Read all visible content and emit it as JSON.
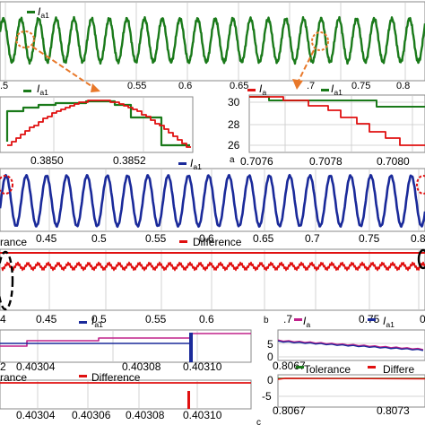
{
  "colors": {
    "green": "#1a7a1a",
    "blue": "#1a2a9a",
    "red": "#e01010",
    "orange": "#e8782a",
    "magenta": "#c0208a",
    "black": "#000000",
    "grid": "#c8c8c8"
  },
  "chart_data": [
    {
      "id": "top-green",
      "type": "line",
      "legend": {
        "symbol": "I",
        "subscript": "a1",
        "placement": "top-left"
      },
      "x_ticks": [
        "0.5",
        "0.55",
        "0.6",
        "0.65",
        "0.7",
        "0.75",
        "0.8"
      ],
      "x_tick_partial_left": ".5",
      "xlim": [
        0.34,
        0.815
      ],
      "series": [
        {
          "name": "Ia1",
          "frequency_hz": 50,
          "cycles_shown": 24
        }
      ],
      "annotations": [
        "zoom-circle-1",
        "zoom-circle-2"
      ]
    },
    {
      "id": "zoom-left",
      "type": "line",
      "legend": {
        "symbol": "I",
        "subscript": "a1"
      },
      "x_ticks": [
        "0.3850",
        "0.3852"
      ],
      "xlim": [
        0.38475,
        0.38535
      ],
      "series": [
        {
          "name": "Ia1 (stair)",
          "steps": 11
        },
        {
          "name": "Ia (fine)",
          "steps": 22
        }
      ]
    },
    {
      "id": "zoom-right",
      "type": "line",
      "legend_items": [
        {
          "symbol": "I",
          "subscript": "a"
        },
        {
          "symbol": "I",
          "subscript": "a1"
        }
      ],
      "x_ticks": [
        "0.7076",
        "0.7078",
        "0.7080"
      ],
      "y_ticks": [
        "30",
        "28",
        "26"
      ],
      "ylim": [
        25.5,
        31
      ],
      "panel_letter": "a"
    },
    {
      "id": "mid-blue",
      "type": "line",
      "legend": {
        "symbol": "I",
        "subscript": "a1"
      },
      "x_ticks": [
        "0.45",
        "0.5",
        "0.55",
        "0.6",
        "0.65",
        "0.7",
        "0.75",
        "0.8"
      ],
      "xlim": [
        0.4,
        0.815
      ],
      "series": [
        {
          "name": "Ia1",
          "frequency_hz": 50,
          "cycles_shown": 21
        }
      ]
    },
    {
      "id": "mid-red",
      "type": "line",
      "legend_items": [
        {
          "label": "rance"
        },
        {
          "label": "Difference"
        }
      ],
      "x_ticks": [
        "0.45",
        "0.5",
        "0.55",
        "0.6",
        "0.65",
        "0.7",
        "0.75",
        "0.8"
      ],
      "x_tick_partial_left": "4",
      "x_tick_partial_right": "0",
      "xlim": [
        0.4,
        0.815
      ],
      "series": [
        {
          "name": "Difference",
          "ripple": true
        },
        {
          "name": "Tolerance",
          "constant": true
        }
      ]
    },
    {
      "id": "bottom-left-a",
      "type": "line",
      "legend": {
        "symbol": "I",
        "subscript": "a1"
      },
      "x_ticks": [
        "0.40304",
        "0.40308",
        "0.40310"
      ],
      "x_tick_partial_left": "2",
      "xlim": [
        0.40301,
        0.40312
      ],
      "series": [
        {
          "name": "Ia (magenta)"
        },
        {
          "name": "Ia1 (blue step)"
        }
      ]
    },
    {
      "id": "bottom-left-b",
      "type": "line",
      "legend_items": [
        {
          "label": "rance"
        },
        {
          "label": "Difference"
        }
      ],
      "x_ticks": [
        "0.40304",
        "0.40306",
        "0.40308",
        "0.40310"
      ],
      "xlim": [
        0.40301,
        0.40312
      ]
    },
    {
      "id": "bottom-right-a",
      "type": "line",
      "legend_items": [
        {
          "symbol": "I",
          "subscript": "a"
        },
        {
          "symbol": "I",
          "subscript": "a1"
        }
      ],
      "x_ticks": [
        "0.8067"
      ],
      "y_ticks": [
        "5",
        "0"
      ],
      "panel_letter": "b",
      "x_partial_labels": [
        ".7",
        "0.75"
      ]
    },
    {
      "id": "bottom-right-b",
      "type": "line",
      "legend_items": [
        {
          "label": "Tolerance"
        },
        {
          "label": "Differe"
        }
      ],
      "x_ticks": [
        "0.8067",
        "0.8073"
      ],
      "y_ticks": [
        "0",
        "-5"
      ],
      "panel_letter": "c"
    }
  ]
}
